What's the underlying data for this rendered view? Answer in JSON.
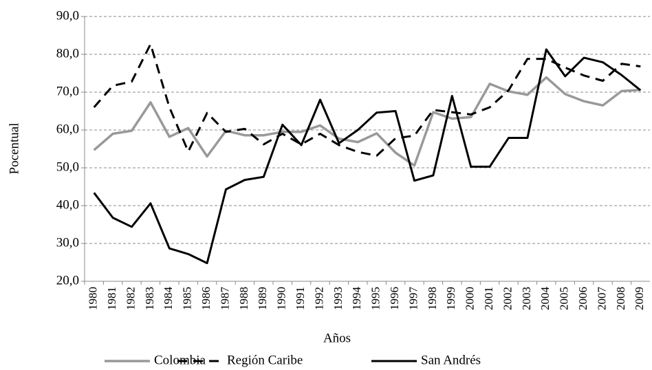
{
  "chart_data": {
    "type": "line",
    "x_label": "Años",
    "y_label": "Pocentual",
    "categories": [
      "1980",
      "1981",
      "1982",
      "1983",
      "1984",
      "1985",
      "1986",
      "1987",
      "1988",
      "1989",
      "1990",
      "1991",
      "1992",
      "1993",
      "1994",
      "1995",
      "1996",
      "1997",
      "1998",
      "1999",
      "2000",
      "2001",
      "2002",
      "2003",
      "2004",
      "2005",
      "2006",
      "2007",
      "2008",
      "2009"
    ],
    "ylim": [
      20,
      90
    ],
    "yticks": [
      {
        "value": 20,
        "label": "20,0"
      },
      {
        "value": 30,
        "label": "30,0"
      },
      {
        "value": 40,
        "label": "40,0"
      },
      {
        "value": 50,
        "label": "50,0"
      },
      {
        "value": 60,
        "label": "60,0"
      },
      {
        "value": 70,
        "label": "70,0"
      },
      {
        "value": 80,
        "label": "80,0"
      },
      {
        "value": 90,
        "label": "90,0"
      }
    ],
    "grid": true,
    "legend": "bottom",
    "series": [
      {
        "name": "Colombia",
        "color": "#999999",
        "dash": "solid",
        "values": [
          54.7,
          59,
          59.8,
          67.3,
          58.2,
          60.5,
          53,
          59.8,
          58.6,
          58.6,
          59.5,
          59.5,
          61.2,
          57.7,
          56.8,
          59.1,
          54,
          50.6,
          64.7,
          63,
          63.4,
          72.2,
          70.2,
          69.3,
          73.9,
          69.5,
          67.6,
          66.5,
          70.3,
          70.6
        ]
      },
      {
        "name": "Región Caribe",
        "color": "#000000",
        "dash": "dashed",
        "values": [
          66,
          71.7,
          72.8,
          82.7,
          66,
          54.3,
          64.5,
          59.5,
          60.3,
          56.2,
          59,
          56.2,
          59,
          56,
          54.2,
          53.2,
          57.8,
          58.5,
          65.3,
          64.7,
          64.1,
          66,
          70.5,
          78.8,
          78.8,
          76.5,
          74.4,
          73,
          77.5,
          76.8
        ]
      },
      {
        "name": "San Andrés",
        "color": "#000000",
        "dash": "solid",
        "values": [
          43.4,
          36.8,
          34.4,
          40.6,
          28.7,
          27.2,
          24.8,
          44.3,
          46.8,
          47.6,
          61.4,
          56,
          68,
          56.5,
          60,
          64.6,
          65,
          46.6,
          48,
          69,
          50.3,
          50.3,
          57.9,
          57.9,
          81.3,
          74.2,
          79.1,
          77.9,
          74.5,
          70.5
        ]
      }
    ]
  }
}
